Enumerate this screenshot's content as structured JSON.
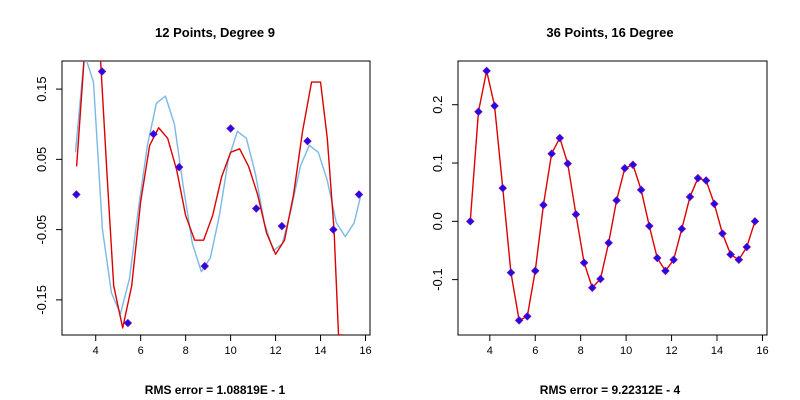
{
  "colors": {
    "fit": "#dd0000",
    "true": "#7ab8e6",
    "points": "#1111ee",
    "point_edge": "#8800aa",
    "axis": "#000000"
  },
  "chart_data": [
    {
      "type": "line",
      "title": "12 Points, Degree 9",
      "subtitle": "RMS error = 1.08819E -  1",
      "xlim": [
        2.5,
        16.2
      ],
      "ylim": [
        -0.2,
        0.19
      ],
      "xticks": [
        4,
        6,
        8,
        10,
        12,
        14,
        16
      ],
      "xtick_labels": [
        "4",
        "6",
        "8",
        "10",
        "12",
        "14",
        "16"
      ],
      "yticks": [
        -0.15,
        -0.05,
        0.05,
        0.15
      ],
      "ytick_labels": [
        "-0.15",
        "-0.05",
        "0.05",
        "0.15"
      ],
      "points": {
        "x": [
          3.14,
          4.28,
          5.43,
          6.57,
          7.71,
          8.85,
          10.0,
          11.14,
          12.28,
          13.42,
          14.57,
          15.71
        ],
        "y": [
          0.0,
          0.175,
          -0.183,
          0.086,
          0.039,
          -0.102,
          0.094,
          -0.02,
          -0.045,
          0.076,
          -0.05,
          0.0
        ]
      },
      "series": [
        {
          "style": "true-curve",
          "x": [
            3.1,
            3.5,
            3.9,
            4.3,
            4.7,
            5.1,
            5.5,
            5.9,
            6.3,
            6.7,
            7.1,
            7.5,
            7.9,
            8.3,
            8.7,
            9.1,
            9.5,
            9.9,
            10.3,
            10.7,
            11.1,
            11.5,
            11.9,
            12.3,
            12.7,
            13.1,
            13.5,
            13.9,
            14.3,
            14.7,
            15.1,
            15.5,
            15.8
          ],
          "y": [
            0.06,
            0.2,
            0.16,
            -0.05,
            -0.14,
            -0.17,
            -0.12,
            -0.02,
            0.07,
            0.13,
            0.14,
            0.1,
            0.01,
            -0.07,
            -0.11,
            -0.09,
            -0.03,
            0.05,
            0.09,
            0.08,
            0.03,
            -0.04,
            -0.08,
            -0.07,
            -0.02,
            0.04,
            0.07,
            0.06,
            0.02,
            -0.04,
            -0.06,
            -0.04,
            0.0
          ]
        },
        {
          "style": "fit",
          "x": [
            3.15,
            3.5,
            3.9,
            4.2,
            4.5,
            4.8,
            5.2,
            5.6,
            6.0,
            6.4,
            6.8,
            7.2,
            7.6,
            8.0,
            8.4,
            8.8,
            9.2,
            9.6,
            10.0,
            10.4,
            10.8,
            11.2,
            11.6,
            12.0,
            12.4,
            12.8,
            13.2,
            13.6,
            14.0,
            14.3,
            14.6,
            14.8,
            15.0
          ],
          "y": [
            0.04,
            0.2,
            0.2,
            0.2,
            0.03,
            -0.13,
            -0.19,
            -0.13,
            -0.01,
            0.07,
            0.095,
            0.08,
            0.035,
            -0.03,
            -0.065,
            -0.065,
            -0.03,
            0.025,
            0.06,
            0.065,
            0.04,
            0.0,
            -0.055,
            -0.085,
            -0.065,
            0.0,
            0.09,
            0.16,
            0.16,
            0.08,
            -0.05,
            -0.2,
            -0.2
          ]
        }
      ]
    },
    {
      "type": "line",
      "title": "36 Points, 16 Degree",
      "subtitle": "RMS error = 9.22312E -  4",
      "xlim": [
        2.6,
        16.2
      ],
      "ylim": [
        -0.195,
        0.275
      ],
      "xticks": [
        4,
        6,
        8,
        10,
        12,
        14,
        16
      ],
      "xtick_labels": [
        "4",
        "6",
        "8",
        "10",
        "12",
        "14",
        "16"
      ],
      "yticks": [
        -0.1,
        0.0,
        0.1,
        0.2
      ],
      "ytick_labels": [
        "-0.1",
        "0.0",
        "0.1",
        "0.2"
      ],
      "points": {
        "x": [
          3.14,
          3.5,
          3.86,
          4.21,
          4.57,
          4.93,
          5.29,
          5.65,
          6.0,
          6.36,
          6.72,
          7.08,
          7.43,
          7.79,
          8.15,
          8.51,
          8.87,
          9.23,
          9.58,
          9.94,
          10.3,
          10.66,
          11.02,
          11.37,
          11.73,
          12.09,
          12.45,
          12.81,
          13.16,
          13.52,
          13.88,
          14.24,
          14.6,
          14.96,
          15.31,
          15.67
        ],
        "y": [
          0.0,
          0.188,
          0.258,
          0.198,
          0.057,
          -0.088,
          -0.17,
          -0.163,
          -0.085,
          0.028,
          0.116,
          0.143,
          0.099,
          0.012,
          -0.071,
          -0.114,
          -0.099,
          -0.037,
          0.036,
          0.091,
          0.097,
          0.054,
          -0.008,
          -0.063,
          -0.085,
          -0.066,
          -0.013,
          0.042,
          0.074,
          0.07,
          0.03,
          -0.021,
          -0.057,
          -0.066,
          -0.044,
          0.0
        ]
      },
      "series": [
        {
          "style": "fit",
          "x": [
            3.14,
            3.5,
            3.86,
            4.21,
            4.57,
            4.93,
            5.29,
            5.65,
            6.0,
            6.36,
            6.72,
            7.08,
            7.43,
            7.79,
            8.15,
            8.51,
            8.87,
            9.23,
            9.58,
            9.94,
            10.3,
            10.66,
            11.02,
            11.37,
            11.73,
            12.09,
            12.45,
            12.81,
            13.16,
            13.52,
            13.88,
            14.24,
            14.6,
            14.96,
            15.31,
            15.67
          ],
          "y": [
            0.0,
            0.188,
            0.258,
            0.198,
            0.057,
            -0.088,
            -0.17,
            -0.163,
            -0.085,
            0.028,
            0.116,
            0.143,
            0.099,
            0.012,
            -0.071,
            -0.114,
            -0.099,
            -0.037,
            0.036,
            0.091,
            0.097,
            0.054,
            -0.008,
            -0.063,
            -0.085,
            -0.066,
            -0.013,
            0.042,
            0.074,
            0.07,
            0.03,
            -0.021,
            -0.057,
            -0.066,
            -0.044,
            0.0
          ]
        }
      ]
    }
  ]
}
